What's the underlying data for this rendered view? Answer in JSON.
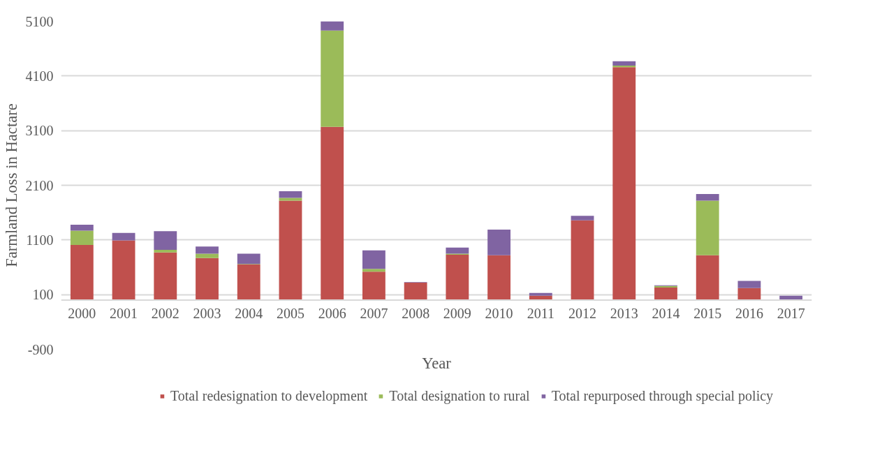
{
  "chart_data": {
    "type": "bar",
    "stacked": true,
    "xlabel": "Year",
    "ylabel": "Farmland Loss in Hactare",
    "categories": [
      "2000",
      "2001",
      "2002",
      "2003",
      "2004",
      "2005",
      "2006",
      "2007",
      "2008",
      "2009",
      "2010",
      "2011",
      "2012",
      "2013",
      "2014",
      "2015",
      "2016",
      "2017"
    ],
    "series": [
      {
        "name": "Total redesignation to development",
        "color": "#c0504d",
        "values": [
          1010,
          1090,
          870,
          770,
          650,
          1820,
          3170,
          520,
          320,
          830,
          820,
          80,
          1460,
          4260,
          230,
          820,
          220,
          0
        ]
      },
      {
        "name": "Total designation to rural",
        "color": "#9bbb59",
        "values": [
          260,
          0,
          50,
          80,
          10,
          50,
          1760,
          50,
          0,
          20,
          0,
          0,
          0,
          30,
          30,
          1000,
          0,
          0
        ]
      },
      {
        "name": "Total repurposed through special policy",
        "color": "#8064a2",
        "values": [
          110,
          140,
          340,
          130,
          190,
          120,
          170,
          340,
          10,
          110,
          470,
          50,
          80,
          80,
          10,
          120,
          130,
          80
        ]
      }
    ],
    "ylim": [
      -900,
      5100
    ],
    "yticks": [
      -900,
      100,
      1100,
      2100,
      3100,
      4100,
      5100
    ],
    "grid": "y",
    "legend": "bottom"
  }
}
